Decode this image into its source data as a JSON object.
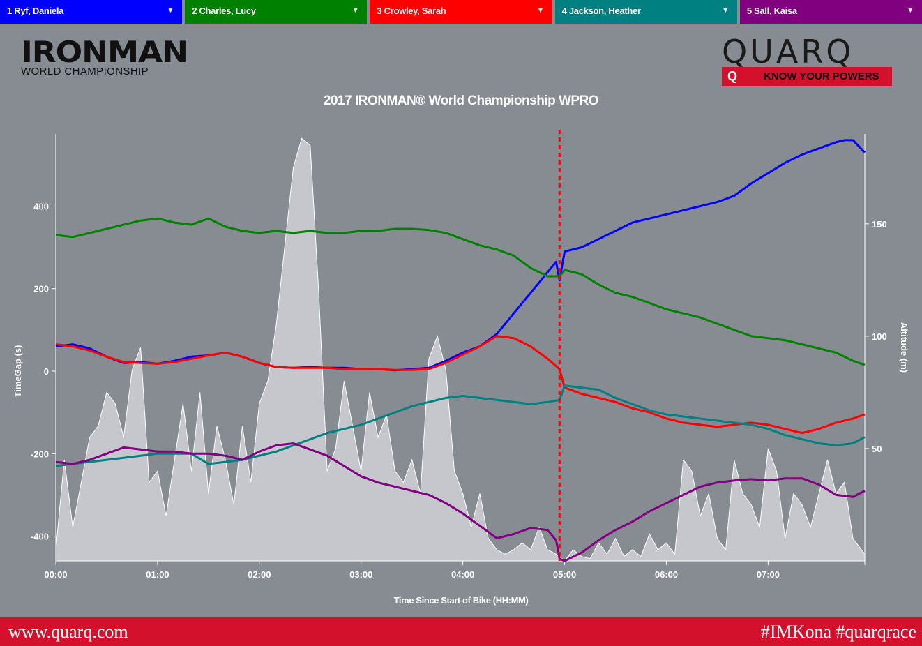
{
  "athletes": [
    {
      "label": "1 Ryf, Daniela",
      "color": "#0000ff"
    },
    {
      "label": "2 Charles, Lucy",
      "color": "#008000"
    },
    {
      "label": "3 Crowley, Sarah",
      "color": "#ff0000"
    },
    {
      "label": "4 Jackson, Heather",
      "color": "#008080"
    },
    {
      "label": "5 Sall, Kaisa",
      "color": "#800080"
    }
  ],
  "logos": {
    "ironman_word": "IRONMAN",
    "ironman_sub": "WORLD CHAMPIONSHIP",
    "quarq_word": "QUARQ",
    "quarq_q": "Q",
    "quarq_tagline": "KNOW YOUR POWERS"
  },
  "footer": {
    "website": "www.quarq.com",
    "hashtags": "#IMKona #quarqrace"
  },
  "chart_data": {
    "type": "line",
    "title": "2017 IRONMAN® World Championship WPRO",
    "xlabel": "Time Since Start of Bike (HH:MM)",
    "ylabel": "TimeGap (s)",
    "y2label": "Altitude (m)",
    "xlim_min": [
      0,
      477
    ],
    "ylim": [
      -460,
      575
    ],
    "y2lim": [
      0,
      190
    ],
    "x_ticks": [
      "00:00",
      "01:00",
      "02:00",
      "03:00",
      "04:00",
      "05:00",
      "06:00",
      "07:00"
    ],
    "y_ticks": [
      400,
      200,
      0,
      -200,
      -400
    ],
    "y2_ticks": [
      150,
      100,
      50
    ],
    "marker_x_min": 297,
    "x_unit": "minutes",
    "series": [
      {
        "name": "1 Ryf, Daniela",
        "color": "#0000ff",
        "x": [
          0,
          10,
          20,
          30,
          40,
          50,
          60,
          70,
          80,
          90,
          100,
          110,
          120,
          130,
          140,
          150,
          160,
          170,
          180,
          190,
          200,
          210,
          220,
          230,
          240,
          250,
          260,
          270,
          280,
          285,
          290,
          295,
          297,
          300,
          310,
          320,
          330,
          340,
          350,
          360,
          370,
          380,
          390,
          400,
          410,
          420,
          430,
          440,
          450,
          460,
          465,
          470,
          477
        ],
        "y": [
          60,
          65,
          55,
          35,
          20,
          22,
          18,
          25,
          35,
          38,
          45,
          35,
          20,
          10,
          8,
          10,
          8,
          8,
          5,
          5,
          2,
          5,
          8,
          25,
          45,
          60,
          90,
          140,
          190,
          215,
          240,
          265,
          220,
          290,
          300,
          320,
          340,
          360,
          370,
          380,
          390,
          400,
          410,
          425,
          455,
          480,
          505,
          525,
          540,
          555,
          560,
          560,
          530
        ]
      },
      {
        "name": "2 Charles, Lucy",
        "color": "#008000",
        "x": [
          0,
          10,
          20,
          30,
          40,
          50,
          60,
          70,
          80,
          90,
          100,
          110,
          120,
          130,
          140,
          150,
          160,
          170,
          180,
          190,
          200,
          210,
          220,
          230,
          240,
          250,
          260,
          270,
          280,
          290,
          297,
          300,
          310,
          320,
          330,
          340,
          350,
          360,
          370,
          380,
          390,
          400,
          410,
          420,
          430,
          440,
          450,
          460,
          470,
          477
        ],
        "y": [
          330,
          325,
          335,
          345,
          355,
          365,
          370,
          360,
          355,
          370,
          350,
          340,
          335,
          340,
          335,
          340,
          335,
          335,
          340,
          340,
          345,
          345,
          342,
          335,
          320,
          305,
          295,
          280,
          250,
          230,
          230,
          245,
          235,
          210,
          190,
          180,
          165,
          150,
          140,
          130,
          115,
          100,
          85,
          80,
          75,
          65,
          55,
          45,
          25,
          15
        ]
      },
      {
        "name": "3 Crowley, Sarah",
        "color": "#ff0000",
        "x": [
          0,
          10,
          20,
          30,
          40,
          50,
          60,
          70,
          80,
          90,
          100,
          110,
          120,
          130,
          140,
          150,
          160,
          170,
          180,
          190,
          200,
          210,
          220,
          230,
          240,
          250,
          260,
          270,
          280,
          290,
          297,
          300,
          310,
          320,
          330,
          340,
          350,
          360,
          370,
          380,
          390,
          400,
          410,
          420,
          430,
          440,
          450,
          460,
          470,
          477
        ],
        "y": [
          65,
          60,
          50,
          35,
          22,
          20,
          18,
          22,
          30,
          38,
          45,
          35,
          20,
          10,
          8,
          8,
          8,
          5,
          5,
          5,
          3,
          3,
          5,
          20,
          40,
          60,
          85,
          80,
          60,
          30,
          5,
          -40,
          -55,
          -65,
          -75,
          -90,
          -100,
          -115,
          -125,
          -130,
          -135,
          -130,
          -125,
          -130,
          -140,
          -150,
          -140,
          -125,
          -115,
          -105
        ]
      },
      {
        "name": "4 Jackson, Heather",
        "color": "#008080",
        "x": [
          0,
          10,
          20,
          30,
          40,
          50,
          60,
          70,
          80,
          90,
          100,
          110,
          120,
          130,
          140,
          150,
          160,
          170,
          180,
          190,
          200,
          210,
          220,
          230,
          240,
          250,
          260,
          270,
          280,
          290,
          297,
          300,
          310,
          320,
          330,
          340,
          350,
          360,
          370,
          380,
          390,
          400,
          410,
          420,
          430,
          440,
          450,
          460,
          470,
          477
        ],
        "y": [
          -230,
          -225,
          -220,
          -215,
          -210,
          -205,
          -200,
          -200,
          -200,
          -225,
          -220,
          -215,
          -205,
          -195,
          -180,
          -165,
          -150,
          -140,
          -130,
          -115,
          -100,
          -85,
          -75,
          -65,
          -60,
          -65,
          -70,
          -75,
          -80,
          -75,
          -70,
          -35,
          -40,
          -45,
          -65,
          -80,
          -95,
          -105,
          -110,
          -115,
          -120,
          -125,
          -130,
          -140,
          -155,
          -165,
          -175,
          -180,
          -175,
          -160
        ]
      },
      {
        "name": "5 Sall, Kaisa",
        "color": "#800080",
        "x": [
          0,
          10,
          20,
          30,
          40,
          50,
          60,
          70,
          80,
          90,
          100,
          110,
          120,
          130,
          140,
          150,
          160,
          170,
          180,
          190,
          200,
          210,
          220,
          230,
          240,
          250,
          260,
          270,
          280,
          290,
          295,
          297,
          300,
          310,
          320,
          330,
          340,
          350,
          360,
          370,
          380,
          390,
          400,
          410,
          420,
          430,
          440,
          450,
          460,
          470,
          477
        ],
        "y": [
          -220,
          -225,
          -215,
          -200,
          -185,
          -190,
          -195,
          -195,
          -200,
          -200,
          -205,
          -215,
          -195,
          -180,
          -175,
          -190,
          -205,
          -230,
          -255,
          -270,
          -280,
          -290,
          -300,
          -320,
          -345,
          -375,
          -405,
          -395,
          -380,
          -385,
          -410,
          -455,
          -460,
          -440,
          -410,
          -385,
          -365,
          -340,
          -320,
          -300,
          -280,
          -270,
          -265,
          -262,
          -265,
          -260,
          -260,
          -275,
          -300,
          -305,
          -290
        ]
      },
      {
        "name": "Altitude",
        "color": "#c8cacf",
        "x": [
          0,
          5,
          10,
          15,
          20,
          25,
          30,
          35,
          40,
          45,
          50,
          55,
          60,
          65,
          70,
          75,
          80,
          85,
          90,
          95,
          100,
          105,
          110,
          115,
          120,
          125,
          130,
          135,
          140,
          145,
          150,
          155,
          160,
          165,
          170,
          175,
          180,
          185,
          190,
          195,
          200,
          205,
          210,
          215,
          220,
          225,
          230,
          235,
          240,
          245,
          250,
          255,
          260,
          265,
          270,
          275,
          280,
          285,
          290,
          295,
          300,
          305,
          310,
          315,
          320,
          325,
          330,
          335,
          340,
          345,
          350,
          355,
          360,
          365,
          370,
          375,
          380,
          385,
          390,
          395,
          400,
          405,
          410,
          415,
          420,
          425,
          430,
          435,
          440,
          445,
          450,
          455,
          460,
          465,
          470,
          477
        ],
        "y": [
          5,
          45,
          15,
          35,
          55,
          60,
          75,
          70,
          55,
          85,
          95,
          35,
          40,
          20,
          45,
          70,
          40,
          75,
          30,
          60,
          45,
          25,
          60,
          35,
          70,
          80,
          105,
          140,
          175,
          188,
          185,
          120,
          40,
          50,
          80,
          60,
          40,
          75,
          55,
          65,
          40,
          35,
          45,
          30,
          90,
          100,
          85,
          40,
          30,
          15,
          30,
          10,
          5,
          3,
          5,
          8,
          5,
          15,
          5,
          3,
          0,
          5,
          2,
          1,
          8,
          3,
          10,
          2,
          5,
          2,
          12,
          5,
          8,
          3,
          45,
          40,
          20,
          30,
          10,
          5,
          45,
          30,
          25,
          15,
          50,
          40,
          10,
          30,
          25,
          15,
          30,
          45,
          30,
          35,
          10,
          3
        ]
      }
    ]
  }
}
